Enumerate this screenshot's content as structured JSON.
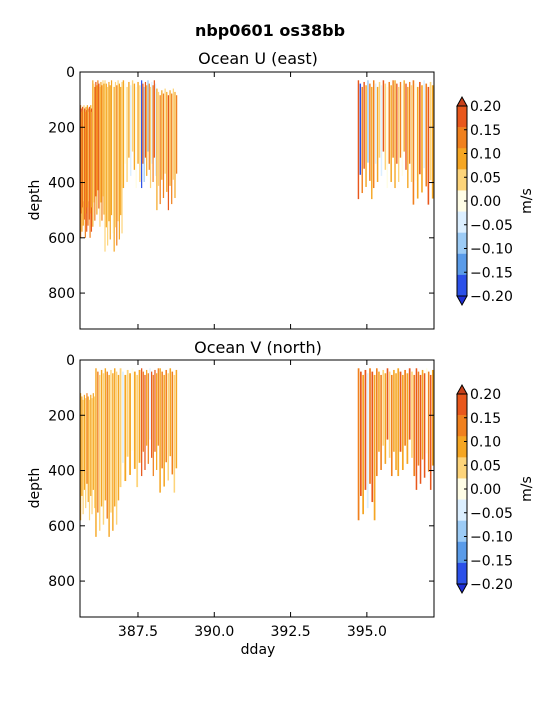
{
  "figure": {
    "suptitle": "nbp0601 os38bb"
  },
  "chart_data": [
    {
      "type": "heatmap",
      "title": "Ocean U (east)",
      "xlabel": "",
      "ylabel": "depth",
      "xlim": [
        385.6,
        397.2
      ],
      "ylim": [
        930,
        0
      ],
      "yticks": [
        0,
        200,
        400,
        600,
        800
      ],
      "ytick_labels": [
        "0",
        "200",
        "400",
        "600",
        "800"
      ],
      "xticks": [
        387.5,
        390.0,
        392.5,
        395.0
      ],
      "xtick_labels": [],
      "colorbar": {
        "label": "m/s",
        "ticks": [
          0.2,
          0.15,
          0.1,
          0.05,
          0.0,
          -0.05,
          -0.1,
          -0.15,
          -0.2
        ],
        "tick_labels": [
          "0.20",
          "0.15",
          "0.10",
          "0.05",
          "0.00",
          "−0.05",
          "−0.10",
          "−0.15",
          "−0.20"
        ],
        "colors": [
          "#e8571c",
          "#f0801e",
          "#f5a623",
          "#fdd47a",
          "#fffde6",
          "#dcefff",
          "#9ccbf5",
          "#5a9be8",
          "#2b50e8"
        ],
        "extend": "both"
      },
      "segments": [
        {
          "x0": 385.6,
          "x1": 386.0,
          "top": 120,
          "bottom": 600,
          "values": [
            0.12,
            0.15,
            0.06,
            0.18,
            0.09,
            0.03,
            0.17,
            0.11,
            0.05,
            0.19,
            0.08,
            0.14,
            0.02,
            0.16,
            0.1,
            0.07,
            0.18,
            0.04
          ]
        },
        {
          "x0": 386.0,
          "x1": 386.4,
          "top": 30,
          "bottom": 560,
          "values": [
            0.08,
            0.03,
            0.12,
            0.19,
            0.05,
            0.1,
            0.16,
            0.02,
            0.07,
            0.13,
            0.04,
            0.09
          ]
        },
        {
          "x0": 386.4,
          "x1": 387.0,
          "top": 30,
          "bottom": 650,
          "values": [
            0.04,
            0.07,
            0.02,
            0.09,
            0.05,
            0.08,
            -0.03,
            0.06,
            0.03,
            0.1,
            0.01,
            0.05,
            0.07,
            0.04
          ]
        },
        {
          "x0": 387.0,
          "x1": 387.6,
          "top": 30,
          "bottom": 420,
          "values": [
            0.06,
            -0.05,
            0.03,
            0.08,
            -0.08,
            0.02,
            0.05,
            -0.04,
            0.07,
            0.01
          ]
        },
        {
          "x0": 387.6,
          "x1": 388.1,
          "top": 30,
          "bottom": 420,
          "values": [
            -0.18,
            0.16,
            -0.12,
            0.18,
            0.07,
            -0.15,
            0.12,
            0.03,
            -0.1,
            0.14,
            0.19,
            -0.06
          ]
        },
        {
          "x0": 388.1,
          "x1": 388.8,
          "top": 60,
          "bottom": 500,
          "values": [
            0.09,
            0.04,
            0.13,
            0.06,
            0.11,
            0.02,
            0.08,
            0.15,
            0.05,
            0.1,
            0.03,
            0.07,
            0.12
          ]
        },
        {
          "x0": 394.7,
          "x1": 395.2,
          "top": 30,
          "bottom": 460,
          "values": [
            0.15,
            -0.18,
            0.11,
            0.19,
            0.06,
            -0.12,
            0.14,
            0.08
          ]
        },
        {
          "x0": 395.2,
          "x1": 395.9,
          "top": 30,
          "bottom": 420,
          "values": [
            0.12,
            -0.07,
            0.09,
            0.04,
            -0.1,
            0.16,
            0.02,
            -0.04,
            0.11,
            0.06,
            0.13
          ]
        },
        {
          "x0": 395.9,
          "x1": 396.5,
          "top": 30,
          "bottom": 420,
          "values": [
            0.07,
            0.17,
            0.03,
            0.12,
            -0.05,
            0.09,
            0.15,
            0.05,
            0.1,
            0.02
          ]
        },
        {
          "x0": 396.5,
          "x1": 397.2,
          "top": 30,
          "bottom": 480,
          "values": [
            0.14,
            -0.04,
            0.08,
            0.19,
            0.05,
            -0.06,
            0.11,
            0.16,
            0.03,
            0.09
          ]
        }
      ]
    },
    {
      "type": "heatmap",
      "title": "Ocean V (north)",
      "xlabel": "dday",
      "ylabel": "depth",
      "xlim": [
        385.6,
        397.2
      ],
      "ylim": [
        930,
        0
      ],
      "yticks": [
        0,
        200,
        400,
        600,
        800
      ],
      "ytick_labels": [
        "0",
        "200",
        "400",
        "600",
        "800"
      ],
      "xticks": [
        387.5,
        390.0,
        392.5,
        395.0
      ],
      "xtick_labels": [
        "387.5",
        "390.0",
        "392.5",
        "395.0"
      ],
      "colorbar": {
        "label": "m/s",
        "ticks": [
          0.2,
          0.15,
          0.1,
          0.05,
          0.0,
          -0.05,
          -0.1,
          -0.15,
          -0.2
        ],
        "tick_labels": [
          "0.20",
          "0.15",
          "0.10",
          "0.05",
          "0.00",
          "−0.05",
          "−0.10",
          "−0.15",
          "−0.20"
        ],
        "colors": [
          "#e8571c",
          "#f0801e",
          "#f5a623",
          "#fdd47a",
          "#fffde6",
          "#dcefff",
          "#9ccbf5",
          "#5a9be8",
          "#2b50e8"
        ],
        "extend": "both"
      },
      "segments": [
        {
          "x0": 385.6,
          "x1": 386.1,
          "top": 120,
          "bottom": 580,
          "values": [
            0.05,
            0.09,
            0.03,
            0.07,
            0.02,
            0.1,
            0.06,
            0.04,
            0.08,
            0.01,
            0.06,
            0.03
          ]
        },
        {
          "x0": 386.1,
          "x1": 386.9,
          "top": 30,
          "bottom": 640,
          "values": [
            0.06,
            0.1,
            0.04,
            0.08,
            0.02,
            0.07,
            0.11,
            0.05,
            0.03,
            0.09,
            0.06,
            0.04,
            0.08
          ]
        },
        {
          "x0": 386.9,
          "x1": 387.6,
          "top": 30,
          "bottom": 460,
          "values": [
            0.04,
            -0.06,
            0.07,
            0.02,
            0.05,
            -0.04,
            0.08,
            0.03,
            0.06
          ]
        },
        {
          "x0": 387.6,
          "x1": 388.2,
          "top": 30,
          "bottom": 420,
          "values": [
            0.17,
            0.12,
            0.19,
            0.08,
            0.14,
            -0.08,
            0.18,
            0.1,
            0.16,
            0.06,
            0.13
          ]
        },
        {
          "x0": 388.2,
          "x1": 388.8,
          "top": 30,
          "bottom": 480,
          "values": [
            0.08,
            0.13,
            0.05,
            0.1,
            0.03,
            0.07,
            0.12,
            0.04,
            0.09
          ]
        },
        {
          "x0": 394.7,
          "x1": 395.3,
          "top": 30,
          "bottom": 580,
          "values": [
            0.14,
            0.19,
            0.09,
            0.17,
            -0.06,
            0.12,
            0.18,
            0.07
          ]
        },
        {
          "x0": 395.3,
          "x1": 396.0,
          "top": 30,
          "bottom": 420,
          "values": [
            0.1,
            0.06,
            0.13,
            0.04,
            0.09,
            0.15,
            0.03,
            0.11,
            0.07,
            0.05
          ]
        },
        {
          "x0": 396.0,
          "x1": 396.6,
          "top": 30,
          "bottom": 420,
          "values": [
            0.09,
            0.15,
            0.05,
            0.12,
            0.08,
            0.18,
            0.04,
            0.11
          ]
        },
        {
          "x0": 396.6,
          "x1": 397.2,
          "top": 30,
          "bottom": 470,
          "values": [
            0.18,
            0.12,
            0.2,
            0.09,
            0.16,
            -0.05,
            0.14,
            0.19,
            0.07
          ]
        }
      ]
    }
  ]
}
